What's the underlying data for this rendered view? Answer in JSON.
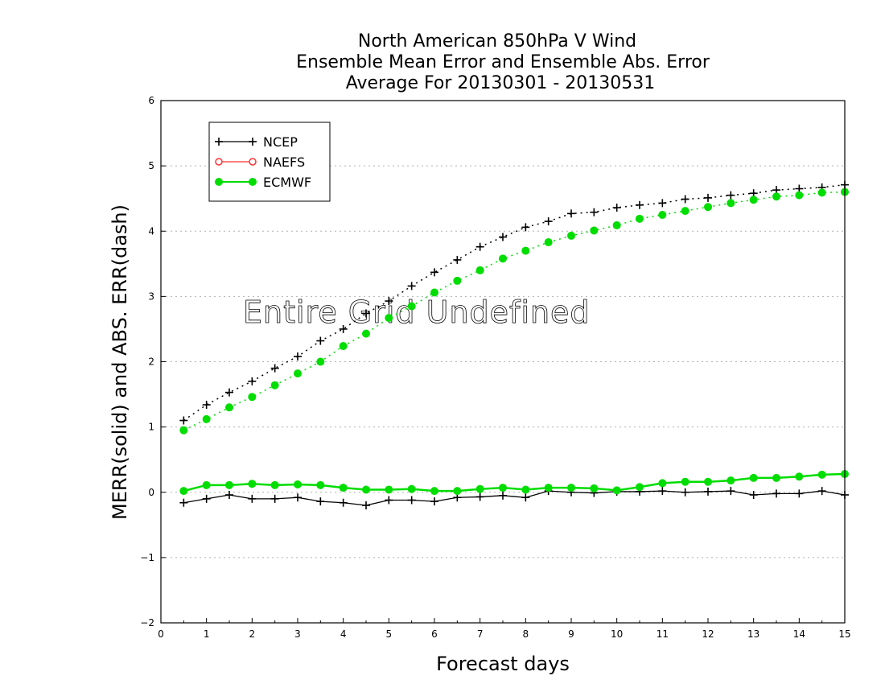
{
  "chart_data": {
    "type": "line",
    "title_lines": [
      "North American 850hPa V Wind",
      "Ensemble Mean Error and Ensemble Abs. Error",
      "Average For 20130301 - 20130531"
    ],
    "xlabel": "Forecast days",
    "ylabel": "MERR(solid) and ABS. ERR(dash)",
    "annotation": "Entire Grid Undefined",
    "xlim": [
      0,
      15
    ],
    "ylim": [
      -2,
      6
    ],
    "xticks": [
      0,
      1,
      2,
      3,
      4,
      5,
      6,
      7,
      8,
      9,
      10,
      11,
      12,
      13,
      14,
      15
    ],
    "yticks": [
      -2,
      -1,
      0,
      1,
      2,
      3,
      4,
      5,
      6
    ],
    "ytick_labels": [
      "−2",
      "−1",
      "0",
      "1",
      "2",
      "3",
      "4",
      "5",
      "6"
    ],
    "grid": true,
    "legend_position": "top-left",
    "x": [
      0.5,
      1,
      1.5,
      2,
      2.5,
      3,
      3.5,
      4,
      4.5,
      5,
      5.5,
      6,
      6.5,
      7,
      7.5,
      8,
      8.5,
      9,
      9.5,
      10,
      10.5,
      11,
      11.5,
      12,
      12.5,
      13,
      13.5,
      14,
      14.5,
      15
    ],
    "series": [
      {
        "name": "NCEP",
        "color": "#000000",
        "marker": "plus",
        "merr": [
          -0.16,
          -0.1,
          -0.04,
          -0.1,
          -0.1,
          -0.08,
          -0.14,
          -0.16,
          -0.2,
          -0.12,
          -0.12,
          -0.14,
          -0.08,
          -0.07,
          -0.05,
          -0.08,
          0.02,
          0.0,
          -0.01,
          0.01,
          0.01,
          0.02,
          0.0,
          0.01,
          0.02,
          -0.04,
          -0.02,
          -0.02,
          0.02,
          -0.04
        ],
        "abs_err": [
          1.1,
          1.34,
          1.53,
          1.7,
          1.9,
          2.08,
          2.32,
          2.5,
          2.74,
          2.93,
          3.16,
          3.37,
          3.56,
          3.76,
          3.91,
          4.06,
          4.15,
          4.27,
          4.29,
          4.36,
          4.4,
          4.43,
          4.49,
          4.51,
          4.55,
          4.58,
          4.63,
          4.65,
          4.67,
          4.71
        ]
      },
      {
        "name": "NAEFS",
        "color": "#ff3333",
        "marker": "open-circle",
        "merr": [],
        "abs_err": []
      },
      {
        "name": "ECMWF",
        "color": "#00dd00",
        "marker": "filled-circle",
        "merr": [
          0.02,
          0.11,
          0.11,
          0.13,
          0.11,
          0.12,
          0.11,
          0.07,
          0.04,
          0.04,
          0.05,
          0.02,
          0.02,
          0.05,
          0.07,
          0.04,
          0.07,
          0.07,
          0.06,
          0.03,
          0.08,
          0.14,
          0.16,
          0.16,
          0.18,
          0.22,
          0.22,
          0.24,
          0.27,
          0.28
        ],
        "abs_err": [
          0.95,
          1.12,
          1.3,
          1.46,
          1.64,
          1.82,
          2.0,
          2.24,
          2.43,
          2.67,
          2.85,
          3.06,
          3.24,
          3.4,
          3.58,
          3.7,
          3.83,
          3.93,
          4.01,
          4.09,
          4.19,
          4.25,
          4.31,
          4.37,
          4.43,
          4.48,
          4.53,
          4.55,
          4.59,
          4.6
        ]
      }
    ]
  }
}
